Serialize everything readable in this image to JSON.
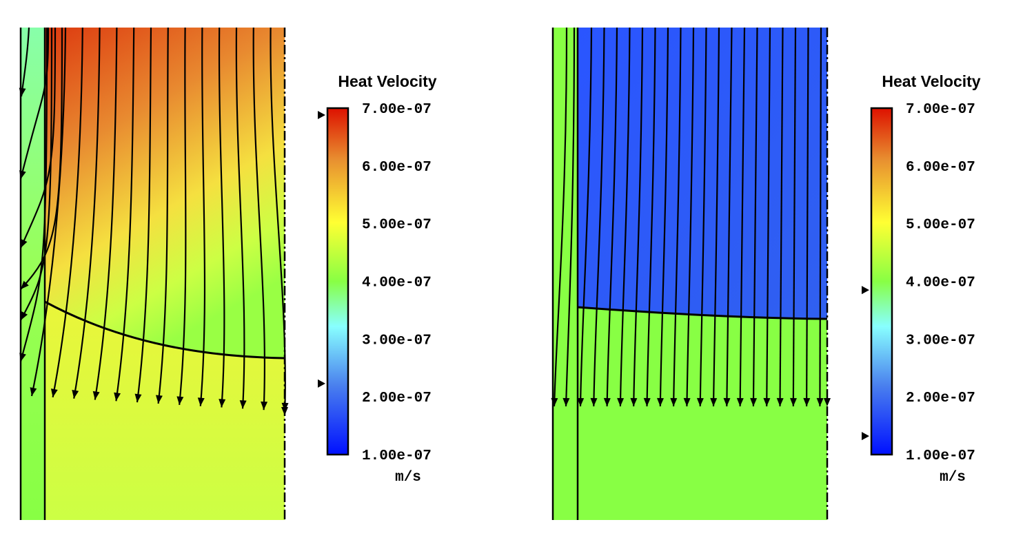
{
  "chart_data": [
    {
      "type": "heatmap",
      "title": "Heat Velocity",
      "unit": "m/s",
      "colorbar_range": [
        1e-07,
        7e-07
      ],
      "colorbar_ticks": [
        "7.00e-07",
        "6.00e-07",
        "5.00e-07",
        "4.00e-07",
        "3.00e-07",
        "2.00e-07",
        "1.00e-07"
      ],
      "colorbar_tick_values": [
        7e-07,
        6e-07,
        5e-07,
        4e-07,
        3e-07,
        2e-07,
        1e-07
      ],
      "range_markers": [
        6.88e-07,
        2.23e-07
      ],
      "streamlines": 20
    },
    {
      "type": "heatmap",
      "title": "Heat Velocity",
      "unit": "m/s",
      "colorbar_range": [
        1e-07,
        7e-07
      ],
      "colorbar_ticks": [
        "7.00e-07",
        "6.00e-07",
        "5.00e-07",
        "4.00e-07",
        "3.00e-07",
        "2.00e-07",
        "1.00e-07"
      ],
      "colorbar_tick_values": [
        7e-07,
        6e-07,
        5e-07,
        4e-07,
        3e-07,
        2e-07,
        1e-07
      ],
      "range_markers": [
        3.85e-07,
        1.32e-07
      ],
      "streamlines": 22
    }
  ],
  "colors": {
    "colormap": [
      "#0010ff",
      "#3a7af0",
      "#88ffff",
      "#88ff44",
      "#ffff33",
      "#e8a030",
      "#dd1100"
    ]
  }
}
